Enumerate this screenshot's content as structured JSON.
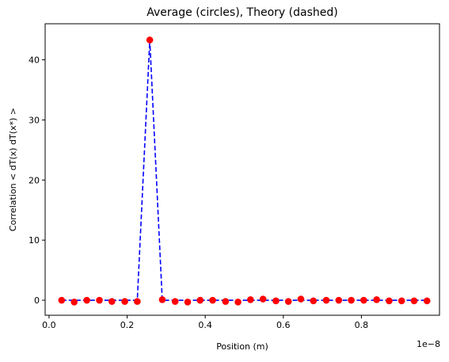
{
  "chart_data": {
    "type": "scatter",
    "title": "Average (circles), Theory (dashed)",
    "xlabel": "Position (m)",
    "ylabel": "Correlation < dT(x) dT(x*) >",
    "x_offset_label": "1e−8",
    "xlim": [
      -0.01,
      1.0
    ],
    "ylim": [
      -2.5,
      46
    ],
    "x_ticks": [
      0.0,
      0.2,
      0.4,
      0.6,
      0.8
    ],
    "x_tick_labels": [
      "0.0",
      "0.2",
      "0.4",
      "0.6",
      "0.8"
    ],
    "y_ticks": [
      0,
      10,
      20,
      30,
      40
    ],
    "y_tick_labels": [
      "0",
      "10",
      "20",
      "30",
      "40"
    ],
    "grid": false,
    "colors": {
      "average": "#ff0000",
      "theory": "#0000ff"
    },
    "series": [
      {
        "marker": "circle",
        "x": [
          0.0323,
          0.0645,
          0.0968,
          0.129,
          0.161,
          0.194,
          0.226,
          0.258,
          0.29,
          0.323,
          0.355,
          0.387,
          0.419,
          0.452,
          0.484,
          0.516,
          0.548,
          0.581,
          0.613,
          0.645,
          0.677,
          0.71,
          0.742,
          0.774,
          0.806,
          0.839,
          0.871,
          0.903,
          0.935,
          0.968
        ],
        "y": [
          0.0,
          -0.3,
          0.0,
          0.0,
          -0.2,
          -0.2,
          -0.2,
          43.3,
          0.1,
          -0.2,
          -0.3,
          0.0,
          0.0,
          -0.2,
          -0.3,
          0.1,
          0.2,
          -0.1,
          -0.2,
          0.2,
          -0.1,
          0.0,
          0.0,
          0.0,
          0.0,
          0.1,
          -0.1,
          -0.1,
          -0.1,
          -0.1
        ]
      },
      {
        "line": "dashed",
        "x": [
          0.0323,
          0.0645,
          0.0968,
          0.129,
          0.161,
          0.194,
          0.226,
          0.258,
          0.29,
          0.323,
          0.355,
          0.387,
          0.419,
          0.452,
          0.484,
          0.516,
          0.548,
          0.581,
          0.613,
          0.645,
          0.677,
          0.71,
          0.742,
          0.774,
          0.806,
          0.839,
          0.871,
          0.903,
          0.935,
          0.968
        ],
        "y": [
          0,
          0,
          0,
          0,
          0,
          0,
          0,
          43.3,
          0,
          0,
          0,
          0,
          0,
          0,
          0,
          0,
          0,
          0,
          0,
          0,
          0,
          0,
          0,
          0,
          0,
          0,
          0,
          0,
          0,
          0
        ]
      }
    ]
  }
}
